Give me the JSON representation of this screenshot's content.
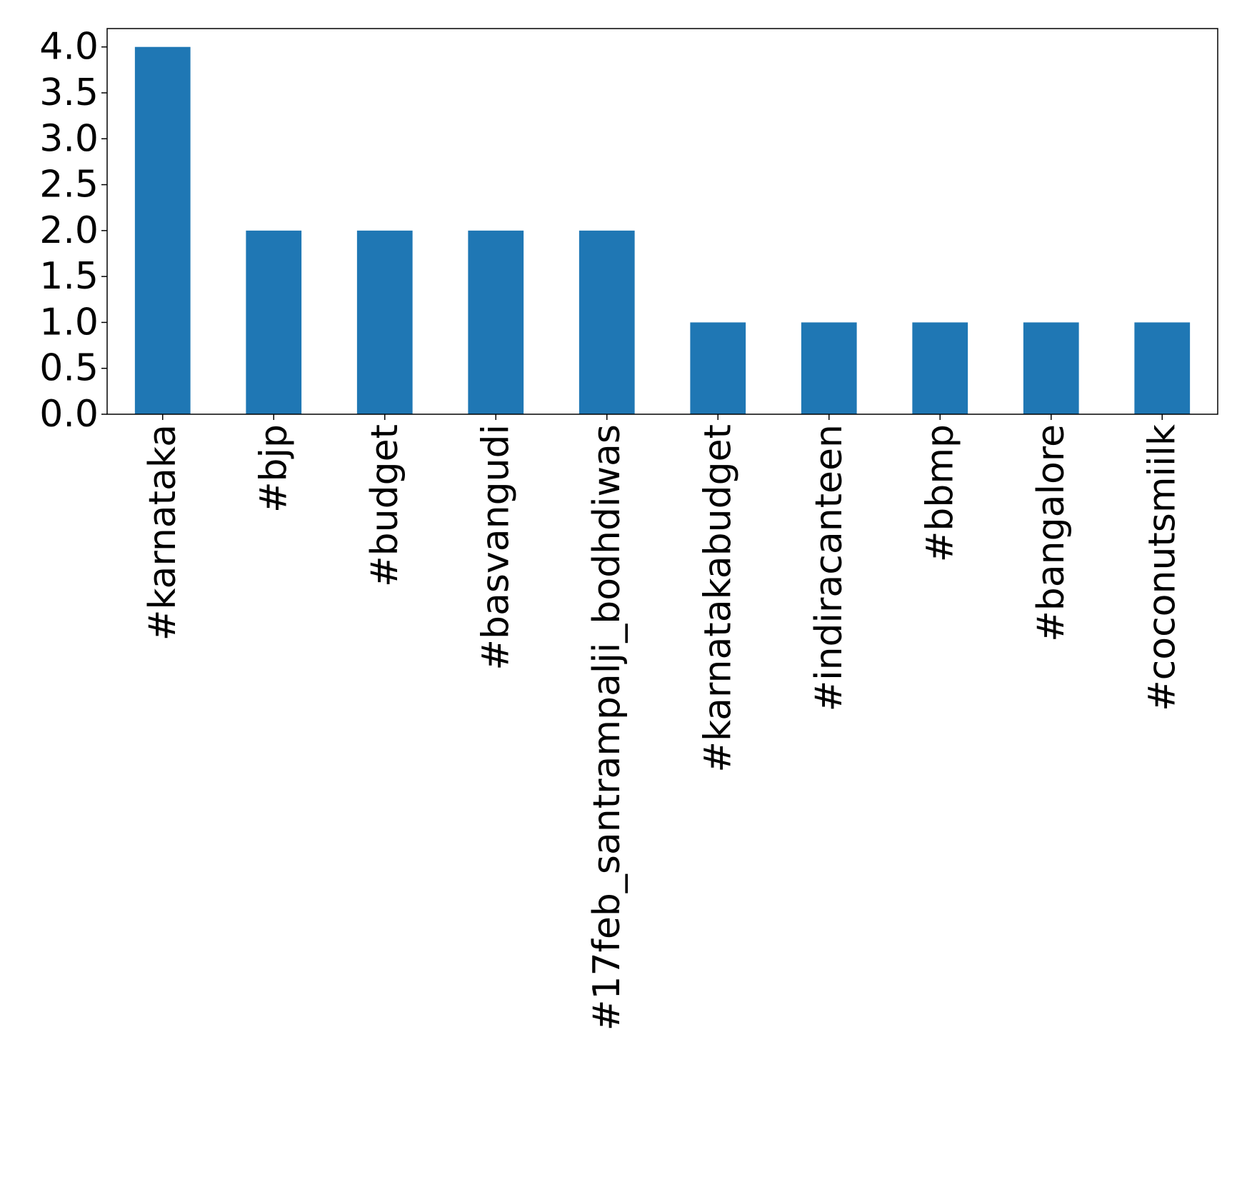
{
  "chart_data": {
    "type": "bar",
    "title": "",
    "xlabel": "",
    "ylabel": "",
    "categories": [
      "#karnataka",
      "#bjp",
      "#budget",
      "#basvangudi",
      "#17feb_santrampalji_bodhdiwas",
      "#karnatakabudget",
      "#indiracanteen",
      "#bbmp",
      "#bangalore",
      "#coconutsmiilk"
    ],
    "values": [
      4,
      2,
      2,
      2,
      2,
      1,
      1,
      1,
      1,
      1
    ],
    "ylim": [
      0,
      4.2
    ],
    "yticks": [
      "0.0",
      "0.5",
      "1.0",
      "1.5",
      "2.0",
      "2.5",
      "3.0",
      "3.5",
      "4.0"
    ],
    "bar_color": "#1f77b4",
    "grid": false,
    "legend": "none"
  }
}
